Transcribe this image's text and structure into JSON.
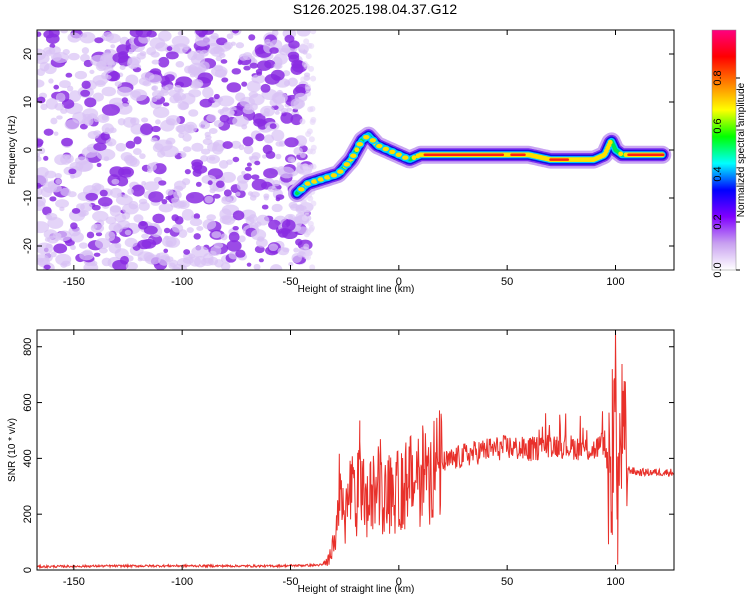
{
  "title": "S126.2025.198.04.37.G12",
  "chart_data": [
    {
      "type": "heatmap",
      "xlabel": "Height of straight line (km)",
      "ylabel": "Frequency (Hz)",
      "xlim": [
        -167,
        127
      ],
      "ylim": [
        -25,
        25
      ],
      "xticks": [
        -150,
        -100,
        -50,
        0,
        50,
        100
      ],
      "xtick_labels": [
        "-150",
        "-100",
        "-50",
        "0",
        "50",
        "100"
      ],
      "yticks": [
        -20,
        -10,
        0,
        10,
        20
      ],
      "ytick_labels": [
        "-20",
        "-10",
        "0",
        "10",
        "20"
      ],
      "noise_region_x": [
        -167,
        -42
      ],
      "signal_ridge": {
        "x": [
          -47,
          -42,
          -35,
          -28,
          -22,
          -17,
          -14,
          -10,
          -5,
          0,
          5,
          10,
          20,
          30,
          40,
          50,
          60,
          70,
          80,
          90,
          95,
          98,
          100,
          103,
          110,
          122
        ],
        "y": [
          -9,
          -7,
          -6,
          -5,
          -2,
          2,
          3,
          1,
          0,
          -1,
          -2,
          -1,
          -1,
          -1,
          -1,
          -1,
          -1,
          -2,
          -2,
          -2,
          -1,
          2,
          0,
          -1,
          -1,
          -1
        ]
      },
      "colorbar": {
        "label": "Normalized spectral amplitude",
        "range": [
          0,
          1
        ],
        "ticks": [
          0.0,
          0.2,
          0.4,
          0.6,
          0.8
        ],
        "tick_labels": [
          "0.0",
          "0.2",
          "0.4",
          "0.6",
          "0.8"
        ],
        "colors": [
          "#ffffff",
          "#c8a0f0",
          "#8000ff",
          "#0000ff",
          "#00ffff",
          "#00ff00",
          "#ffff00",
          "#ff8000",
          "#ff0000",
          "#ff0080"
        ]
      }
    },
    {
      "type": "line",
      "xlabel": "Height of straight line (km)",
      "ylabel": "SNR (10 * v/v)",
      "xlim": [
        -167,
        127
      ],
      "ylim": [
        0,
        860
      ],
      "xticks": [
        -150,
        -100,
        -50,
        0,
        50,
        100
      ],
      "xtick_labels": [
        "-150",
        "-100",
        "-50",
        "0",
        "50",
        "100"
      ],
      "yticks": [
        0,
        200,
        400,
        600,
        800
      ],
      "ytick_labels": [
        "0",
        "200",
        "400",
        "600",
        "800"
      ],
      "line_color": "#e8302a",
      "x": [
        -167,
        -140,
        -100,
        -60,
        -35,
        -32,
        -30,
        -27,
        -25,
        -22,
        -20,
        -18,
        -15,
        -10,
        -5,
        0,
        5,
        10,
        20,
        30,
        40,
        50,
        60,
        70,
        80,
        90,
        95,
        98,
        100,
        101,
        103,
        106,
        110,
        120,
        127
      ],
      "y": [
        12,
        14,
        15,
        14,
        18,
        40,
        120,
        250,
        180,
        300,
        200,
        350,
        220,
        300,
        260,
        280,
        310,
        340,
        380,
        410,
        430,
        440,
        430,
        450,
        440,
        430,
        460,
        250,
        700,
        300,
        500,
        360,
        350,
        350,
        350
      ],
      "spikes": [
        {
          "x": -18,
          "y": 460
        },
        {
          "x": 100,
          "y": 860
        },
        {
          "x": 98.5,
          "y": 720
        },
        {
          "x": 101,
          "y": 20
        },
        {
          "x": 104,
          "y": 440
        }
      ]
    }
  ]
}
